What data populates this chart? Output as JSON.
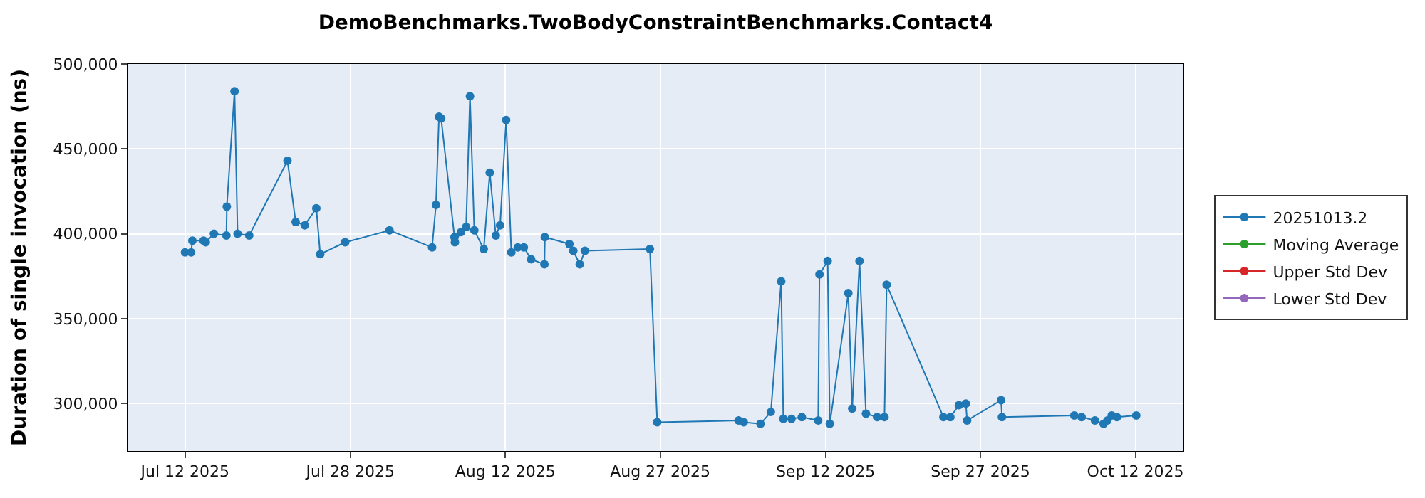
{
  "chart_data": {
    "type": "line",
    "title": "DemoBenchmarks.TwoBodyConstraintBenchmarks.Contact4",
    "ylabel": "Duration of single invocation (ns)",
    "x": [
      "2025-07-12T00:00",
      "2025-07-12T14:00",
      "2025-07-12T17:00",
      "2025-07-13T19:00",
      "2025-07-14T00:00",
      "2025-07-14T19:00",
      "2025-07-16T00:00",
      "2025-07-16T01:00",
      "2025-07-16T19:00",
      "2025-07-17T02:00",
      "2025-07-18T05:00",
      "2025-07-21T22:00",
      "2025-07-22T17:00",
      "2025-07-23T14:00",
      "2025-07-24T17:00",
      "2025-07-25T02:00",
      "2025-07-27T12:00",
      "2025-07-31T19:00",
      "2025-08-04T22:00",
      "2025-08-05T07:00",
      "2025-08-05T14:00",
      "2025-08-05T19:00",
      "2025-08-07T02:00",
      "2025-08-07T03:00",
      "2025-08-07T17:00",
      "2025-08-08T05:00",
      "2025-08-08T14:00",
      "2025-08-09T00:00",
      "2025-08-09T22:00",
      "2025-08-10T12:00",
      "2025-08-11T02:00",
      "2025-08-11T12:00",
      "2025-08-12T02:00",
      "2025-08-12T14:00",
      "2025-08-13T05:00",
      "2025-08-13T19:00",
      "2025-08-14T12:00",
      "2025-08-15T19:00",
      "2025-08-15T20:00",
      "2025-08-18T05:00",
      "2025-08-18T14:00",
      "2025-08-19T05:00",
      "2025-08-19T17:00",
      "2025-08-26T00:00",
      "2025-08-26T17:00",
      "2025-09-03T14:00",
      "2025-09-04T02:00",
      "2025-09-05T17:00",
      "2025-09-06T17:00",
      "2025-09-07T17:00",
      "2025-09-07T22:00",
      "2025-09-08T17:00",
      "2025-09-09T17:00",
      "2025-09-11T07:00",
      "2025-09-11T10:00",
      "2025-09-12T05:00",
      "2025-09-12T10:00",
      "2025-09-14T05:00",
      "2025-09-14T14:00",
      "2025-09-15T07:00",
      "2025-09-15T22:00",
      "2025-09-17T00:00",
      "2025-09-17T17:00",
      "2025-09-17T22:00",
      "2025-09-23T10:00",
      "2025-09-24T02:00",
      "2025-09-24T22:00",
      "2025-09-25T14:00",
      "2025-09-25T17:00",
      "2025-09-29T00:00",
      "2025-09-29T02:00",
      "2025-10-06T02:00",
      "2025-10-06T19:00",
      "2025-10-08T02:00",
      "2025-10-08T22:00",
      "2025-10-09T07:00",
      "2025-10-09T17:00",
      "2025-10-10T05:00",
      "2025-10-12T02:00"
    ],
    "series": [
      {
        "name": "20251013.2",
        "color": "#1f77b4",
        "values": [
          389000,
          389000,
          396000,
          396000,
          395000,
          400000,
          399000,
          416000,
          484000,
          400000,
          399000,
          443000,
          407000,
          405000,
          415000,
          388000,
          395000,
          402000,
          392000,
          417000,
          469000,
          468000,
          398000,
          395000,
          401000,
          404000,
          481000,
          402000,
          391000,
          436000,
          399000,
          405000,
          467000,
          389000,
          392000,
          392000,
          385000,
          382000,
          398000,
          394000,
          390000,
          382000,
          390000,
          391000,
          289000,
          290000,
          289000,
          288000,
          295000,
          372000,
          291000,
          291000,
          292000,
          290000,
          376000,
          384000,
          288000,
          365000,
          297000,
          384000,
          294000,
          292000,
          292000,
          370000,
          292000,
          292000,
          299000,
          300000,
          290000,
          302000,
          292000,
          293000,
          292000,
          290000,
          288000,
          290000,
          293000,
          292000,
          293000
        ]
      },
      {
        "name": "Moving Average",
        "color": "#2ca02c",
        "values": [
          null,
          null,
          null,
          null,
          null,
          null,
          null,
          null,
          null,
          null,
          null,
          null,
          null,
          null,
          null,
          null,
          null,
          null,
          null,
          null,
          null,
          null,
          null,
          null,
          null,
          null,
          null,
          null,
          null,
          null,
          null,
          null,
          null,
          null,
          null,
          null,
          null,
          null,
          null,
          null,
          null,
          null,
          null,
          null,
          null,
          null,
          null,
          null,
          null,
          null,
          null,
          null,
          null,
          null,
          null,
          null,
          null,
          null,
          null,
          null,
          null,
          null,
          null,
          null,
          null,
          null,
          null,
          null,
          null,
          null,
          null,
          null,
          null,
          null,
          null,
          null,
          null,
          null,
          null
        ]
      },
      {
        "name": "Upper Std Dev",
        "color": "#d62728",
        "values": [
          null,
          null,
          null,
          null,
          null,
          null,
          null,
          null,
          null,
          null,
          null,
          null,
          null,
          null,
          null,
          null,
          null,
          null,
          null,
          null,
          null,
          null,
          null,
          null,
          null,
          null,
          null,
          null,
          null,
          null,
          null,
          null,
          null,
          null,
          null,
          null,
          null,
          null,
          null,
          null,
          null,
          null,
          null,
          null,
          null,
          null,
          null,
          null,
          null,
          null,
          null,
          null,
          null,
          null,
          null,
          null,
          null,
          null,
          null,
          null,
          null,
          null,
          null,
          null,
          null,
          null,
          null,
          null,
          null,
          null,
          null,
          null,
          null,
          null,
          null,
          null,
          null,
          null,
          null
        ]
      },
      {
        "name": "Lower Std Dev",
        "color": "#9467bd",
        "values": [
          null,
          null,
          null,
          null,
          null,
          null,
          null,
          null,
          null,
          null,
          null,
          null,
          null,
          null,
          null,
          null,
          null,
          null,
          null,
          null,
          null,
          null,
          null,
          null,
          null,
          null,
          null,
          null,
          null,
          null,
          null,
          null,
          null,
          null,
          null,
          null,
          null,
          null,
          null,
          null,
          null,
          null,
          null,
          null,
          null,
          null,
          null,
          null,
          null,
          null,
          null,
          null,
          null,
          null,
          null,
          null,
          null,
          null,
          null,
          null,
          null,
          null,
          null,
          null,
          null,
          null,
          null,
          null,
          null,
          null,
          null,
          null,
          null,
          null,
          null,
          null,
          null,
          null,
          null
        ]
      }
    ],
    "xlim": [
      "2025-07-06T12:00",
      "2025-10-16T14:00"
    ],
    "xticks": [
      {
        "value": "2025-07-12",
        "label": "Jul 12 2025"
      },
      {
        "value": "2025-07-28",
        "label": "Jul 28 2025"
      },
      {
        "value": "2025-08-12",
        "label": "Aug 12 2025"
      },
      {
        "value": "2025-08-27",
        "label": "Aug 27 2025"
      },
      {
        "value": "2025-09-12",
        "label": "Sep 12 2025"
      },
      {
        "value": "2025-09-27",
        "label": "Sep 27 2025"
      },
      {
        "value": "2025-10-12",
        "label": "Oct 12 2025"
      }
    ],
    "ylim": [
      272000,
      500000
    ],
    "yticks": [
      {
        "value": 300000,
        "label": "300,000"
      },
      {
        "value": 350000,
        "label": "350,000"
      },
      {
        "value": 400000,
        "label": "400,000"
      },
      {
        "value": 450000,
        "label": "450,000"
      },
      {
        "value": 500000,
        "label": "500,000"
      }
    ],
    "grid": true,
    "legend": "right",
    "marker": "circle",
    "line_style": "solid"
  }
}
